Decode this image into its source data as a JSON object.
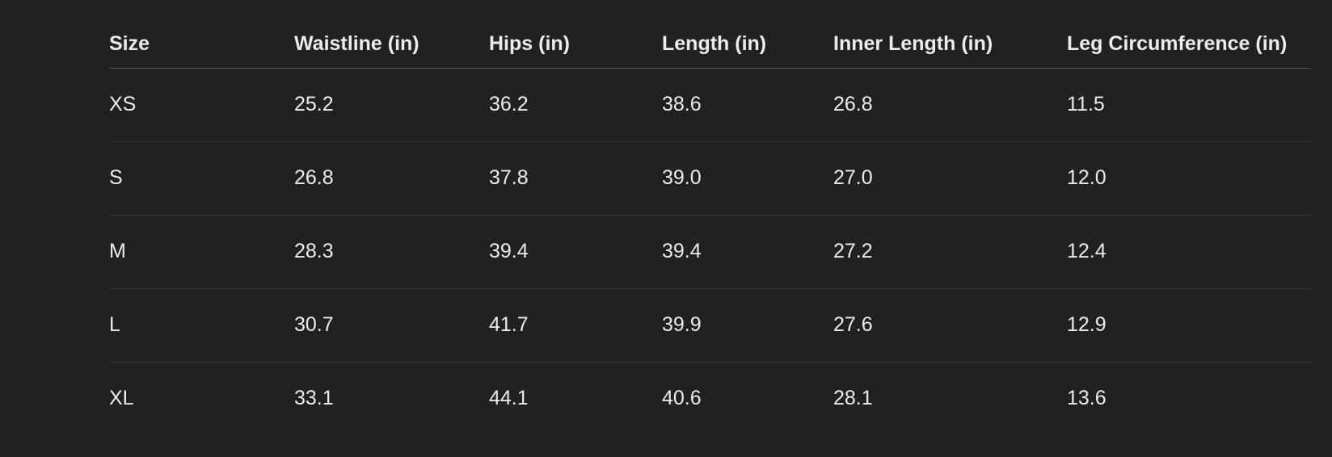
{
  "table": {
    "headers": [
      "Size",
      "Waistline (in)",
      "Hips (in)",
      "Length (in)",
      "Inner Length (in)",
      "Leg Circumference (in)"
    ],
    "rows": [
      [
        "XS",
        "25.2",
        "36.2",
        "38.6",
        "26.8",
        "11.5"
      ],
      [
        "S",
        "26.8",
        "37.8",
        "39.0",
        "27.0",
        "12.0"
      ],
      [
        "M",
        "28.3",
        "39.4",
        "39.4",
        "27.2",
        "12.4"
      ],
      [
        "L",
        "30.7",
        "41.7",
        "39.9",
        "27.6",
        "12.9"
      ],
      [
        "XL",
        "33.1",
        "44.1",
        "40.6",
        "28.1",
        "13.6"
      ]
    ]
  }
}
